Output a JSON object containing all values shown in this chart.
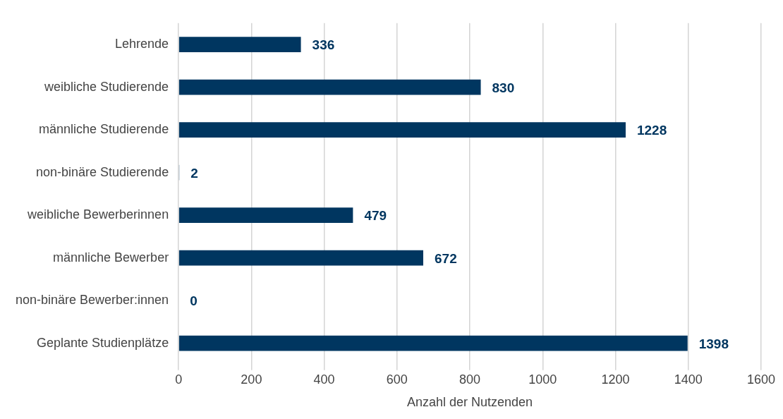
{
  "chart_data": {
    "type": "bar",
    "orientation": "horizontal",
    "categories": [
      "Lehrende",
      "weibliche Studierende",
      "männliche Studierende",
      "non-binäre Studierende",
      "weibliche Bewerberinnen",
      "männliche Bewerber",
      "non-binäre Bewerber:innen",
      "Geplante Studienplätze"
    ],
    "values": [
      336,
      830,
      1228,
      2,
      479,
      672,
      0,
      1398
    ],
    "color": "#003660",
    "xlabel": "Anzahl der Nutzenden",
    "xlim": [
      0,
      1600
    ],
    "xticks": [
      0,
      200,
      400,
      600,
      800,
      1000,
      1200,
      1400,
      1600
    ],
    "grid": "x",
    "legend": false,
    "data_labels": true
  }
}
